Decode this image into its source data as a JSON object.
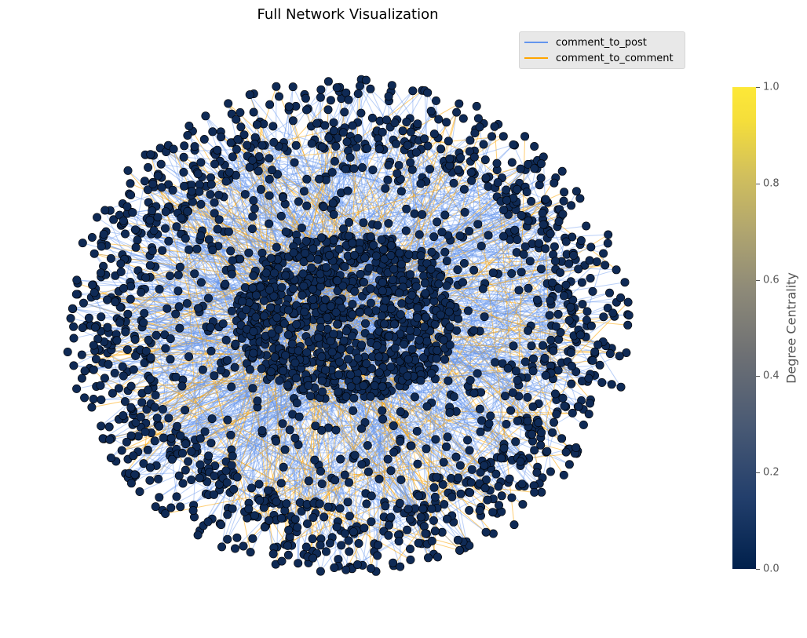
{
  "title": "Full Network Visualization",
  "legend": [
    {
      "label": "comment_to_post",
      "color": "#6495ed"
    },
    {
      "label": "comment_to_comment",
      "color": "#ffa500"
    }
  ],
  "colorbar": {
    "label": "Degree Centrality",
    "ticks": [
      "0.0",
      "0.2",
      "0.4",
      "0.6",
      "0.8",
      "1.0"
    ],
    "range": [
      0.0,
      1.0
    ],
    "colormap": "cividis"
  },
  "colors": {
    "node_fill": "#0f2a55",
    "node_edge": "#000000",
    "edge_post": "#6495ed",
    "edge_comment": "#ffa500"
  }
}
